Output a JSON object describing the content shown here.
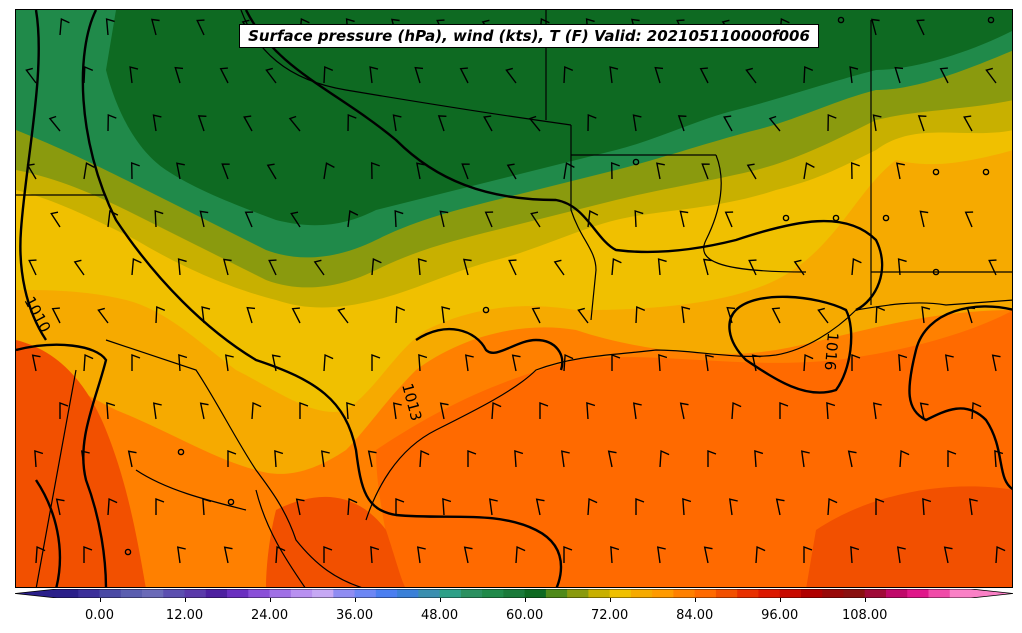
{
  "title": "Surface pressure (hPa), wind (kts), T (F) Valid: 202105110000f006",
  "isobar_labels": [
    "1010",
    "1013",
    "1016"
  ],
  "colorbar": {
    "ticks": [
      "0.00",
      "12.00",
      "24.00",
      "36.00",
      "48.00",
      "60.00",
      "72.00",
      "84.00",
      "96.00",
      "108.00"
    ],
    "min": -6,
    "max": 123,
    "step": 3,
    "colors": [
      "#2a1f8a",
      "#3b2f9a",
      "#4a4aa5",
      "#5a5eb0",
      "#6a6ab8",
      "#5b4fb0",
      "#5a3aaa",
      "#4d20a0",
      "#6a2fc0",
      "#8a4fd8",
      "#a070e6",
      "#b890f0",
      "#c6a8f4",
      "#8f8cf2",
      "#6c86f4",
      "#4a7ef0",
      "#3a80d8",
      "#3a8fb0",
      "#2ea088",
      "#2b9060",
      "#208a4a",
      "#1a7a3a",
      "#0e6a22",
      "#4f8a1a",
      "#8a9a0e",
      "#c8b000",
      "#f0c000",
      "#f6aa00",
      "#ff9a00",
      "#ff8000",
      "#ff6a00",
      "#f25000",
      "#e83000",
      "#dc1800",
      "#c80a00",
      "#b00000",
      "#980808",
      "#8a1010",
      "#a00a38",
      "#c0086a",
      "#e0168a",
      "#f04aa8",
      "#fa80c6"
    ]
  },
  "map_colors": {
    "dark_green": "#0e6a22",
    "green": "#208a4a",
    "olive": "#4f8a1a",
    "khaki": "#8a9a0e",
    "yellow_olive": "#c8b000",
    "yellow": "#f0c000",
    "light_orange": "#f6aa00",
    "orange": "#ff8000",
    "deep_orange": "#ff6a00",
    "red_orange": "#f25000"
  }
}
